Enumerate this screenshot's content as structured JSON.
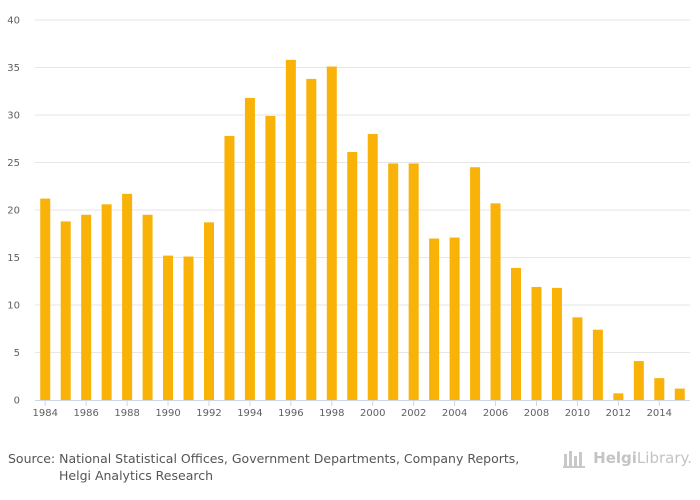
{
  "chart_data": {
    "type": "bar",
    "x": [
      1984,
      1985,
      1986,
      1987,
      1988,
      1989,
      1990,
      1991,
      1992,
      1993,
      1994,
      1995,
      1996,
      1997,
      1998,
      1999,
      2000,
      2001,
      2002,
      2003,
      2004,
      2005,
      2006,
      2007,
      2008,
      2009,
      2010,
      2011,
      2012,
      2013,
      2014,
      2015
    ],
    "values": [
      21.2,
      18.8,
      19.5,
      20.6,
      21.7,
      19.5,
      15.2,
      15.1,
      18.7,
      27.8,
      31.8,
      29.9,
      35.8,
      33.8,
      35.1,
      26.1,
      28.0,
      24.9,
      24.9,
      17.0,
      17.1,
      24.5,
      20.7,
      13.9,
      11.9,
      11.8,
      8.7,
      7.4,
      0.7,
      4.1,
      2.3,
      1.2
    ],
    "y_ticks": [
      "0",
      "5",
      "10",
      "15",
      "20",
      "25",
      "30",
      "35",
      "40"
    ],
    "x_tick_labels": [
      "1984",
      "1986",
      "1988",
      "1990",
      "1992",
      "1994",
      "1996",
      "1998",
      "2000",
      "2002",
      "2004",
      "2006",
      "2008",
      "2010",
      "2012",
      "2014"
    ],
    "ylim": [
      0,
      40
    ],
    "title": "",
    "xlabel": "",
    "ylabel": "",
    "bar_color": "#f8b208",
    "grid": true
  },
  "source": {
    "line1": "Source: National Statistical Offices, Government Departments, Company Reports,",
    "line2": "Helgi Analytics Research"
  },
  "logo": {
    "bold": "Helgi",
    "light": "Library."
  }
}
